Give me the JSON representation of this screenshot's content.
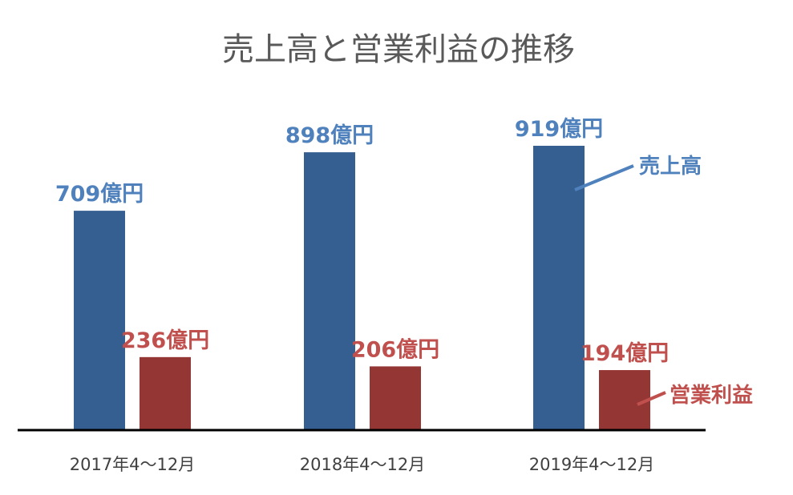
{
  "chart_data": {
    "type": "bar",
    "title": "売上高と営業利益の推移",
    "categories": [
      "2017年4～12月",
      "2018年4～12月",
      "2019年4～12月"
    ],
    "series": [
      {
        "name": "売上高",
        "values": [
          709,
          898,
          919
        ],
        "labels": [
          "709億円",
          "898億円",
          "919億円"
        ],
        "color": "#355f91"
      },
      {
        "name": "営業利益",
        "values": [
          236,
          206,
          194
        ],
        "labels": [
          "236億円",
          "206億円",
          "194億円"
        ],
        "color": "#943634"
      }
    ],
    "label_colors": {
      "sales": "#4f81bd",
      "profit": "#c0504d"
    },
    "title_color": "#595959",
    "tick_color": "#404040",
    "axis_color": "#000000",
    "ylim": [
      0,
      1000
    ],
    "grid": false,
    "legend": "inline-right"
  }
}
